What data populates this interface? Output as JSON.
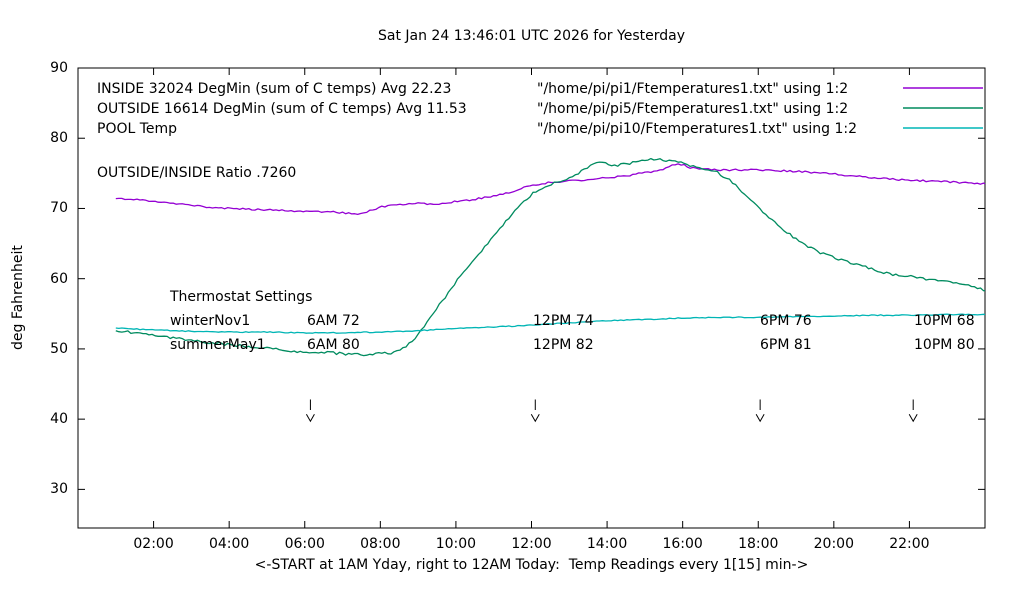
{
  "chart_data": {
    "type": "line",
    "title": "Sat Jan 24 13:46:01 UTC 2026 for Yesterday",
    "xlabel": "<-START at 1AM Yday, right to 12AM Today:  Temp Readings every 1[15] min->",
    "ylabel": "deg Fahrenheit",
    "xlim": [
      0,
      24
    ],
    "ylim": [
      24.5,
      90
    ],
    "grid": false,
    "legend_position": "top-left-inside",
    "xtick_hours": [
      2,
      4,
      6,
      8,
      10,
      12,
      14,
      16,
      18,
      20,
      22
    ],
    "xtick_labels": [
      "02:00",
      "04:00",
      "06:00",
      "08:00",
      "10:00",
      "12:00",
      "14:00",
      "16:00",
      "18:00",
      "20:00",
      "22:00"
    ],
    "ytick_values": [
      30,
      40,
      50,
      60,
      70,
      80,
      90
    ],
    "legend": [
      {
        "id": "inside",
        "label": "INSIDE 32024 DegMin (sum of C temps) Avg 22.23",
        "file": "\"/home/pi/pi1/Ftemperatures1.txt\" using 1:2",
        "color": "#9400d3"
      },
      {
        "id": "outside",
        "label": "OUTSIDE 16614 DegMin (sum of C temps) Avg 11.53",
        "file": "\"/home/pi/pi5/Ftemperatures1.txt\" using 1:2",
        "color": "#008b5f"
      },
      {
        "id": "pool",
        "label": "POOL Temp",
        "file": "\"/home/pi/pi10/Ftemperatures1.txt\" using 1:2",
        "color": "#00b5b5"
      }
    ],
    "annotations": {
      "ratio": "OUTSIDE/INSIDE Ratio .7260",
      "thermostat_title": "Thermostat Settings",
      "thermostat_rows": [
        {
          "name": "winterNov1",
          "t6am": "6AM 72",
          "t12pm": "12PM 74",
          "t6pm": "6PM 76",
          "t10pm": "10PM 68"
        },
        {
          "name": "summerMay1",
          "t6am": "6AM 80",
          "t12pm": "12PM 82",
          "t6pm": "6PM 81",
          "t10pm": "10PM 80"
        }
      ]
    },
    "arrows_x_hours": [
      6.15,
      12.1,
      18.05,
      22.1
    ],
    "series": [
      {
        "id": "inside",
        "name": "INSIDE",
        "color": "#9400d3",
        "noise": 0.12,
        "seed": 1,
        "points": [
          [
            1,
            71.5
          ],
          [
            2,
            71.0
          ],
          [
            3,
            70.4
          ],
          [
            4,
            70.0
          ],
          [
            5,
            69.8
          ],
          [
            6,
            69.6
          ],
          [
            6.8,
            69.5
          ],
          [
            7.3,
            69.2
          ],
          [
            7.6,
            69.4
          ],
          [
            8,
            70.2
          ],
          [
            8.3,
            70.5
          ],
          [
            9,
            70.7
          ],
          [
            9.5,
            70.6
          ],
          [
            10,
            71.0
          ],
          [
            10.5,
            71.3
          ],
          [
            11,
            71.8
          ],
          [
            11.5,
            72.4
          ],
          [
            12,
            73.3
          ],
          [
            12.5,
            73.7
          ],
          [
            13,
            73.9
          ],
          [
            13.5,
            74.1
          ],
          [
            14,
            74.4
          ],
          [
            14.5,
            74.6
          ],
          [
            15,
            75.1
          ],
          [
            15.4,
            75.4
          ],
          [
            15.7,
            76.2
          ],
          [
            16,
            76.3
          ],
          [
            16.2,
            75.8
          ],
          [
            16.5,
            75.6
          ],
          [
            17,
            75.5
          ],
          [
            18,
            75.5
          ],
          [
            19,
            75.3
          ],
          [
            20,
            74.9
          ],
          [
            21,
            74.4
          ],
          [
            22,
            74.0
          ],
          [
            23,
            73.8
          ],
          [
            24,
            73.5
          ]
        ]
      },
      {
        "id": "outside",
        "name": "OUTSIDE",
        "color": "#008b5f",
        "noise": 0.18,
        "seed": 2,
        "points": [
          [
            1,
            52.6
          ],
          [
            1.5,
            52.3
          ],
          [
            2,
            51.9
          ],
          [
            2.5,
            51.6
          ],
          [
            3,
            51.2
          ],
          [
            3.5,
            50.9
          ],
          [
            4,
            50.6
          ],
          [
            4.5,
            50.3
          ],
          [
            5,
            50.1
          ],
          [
            5.5,
            49.8
          ],
          [
            6,
            49.5
          ],
          [
            6.3,
            49.3
          ],
          [
            6.6,
            49.5
          ],
          [
            7,
            49.3
          ],
          [
            7.5,
            49.2
          ],
          [
            8,
            49.3
          ],
          [
            8.4,
            49.5
          ],
          [
            8.7,
            50.5
          ],
          [
            9,
            52.0
          ],
          [
            9.3,
            54.5
          ],
          [
            9.6,
            56.5
          ],
          [
            10,
            59.5
          ],
          [
            10.3,
            61.5
          ],
          [
            10.6,
            63.5
          ],
          [
            11,
            66.0
          ],
          [
            11.3,
            68.0
          ],
          [
            11.6,
            70.0
          ],
          [
            12,
            72.0
          ],
          [
            12.3,
            73.0
          ],
          [
            12.6,
            73.6
          ],
          [
            13,
            74.3
          ],
          [
            13.3,
            75.2
          ],
          [
            13.6,
            76.2
          ],
          [
            13.9,
            76.6
          ],
          [
            14.2,
            76.1
          ],
          [
            14.5,
            76.3
          ],
          [
            15,
            77.0
          ],
          [
            15.3,
            77.1
          ],
          [
            15.6,
            76.8
          ],
          [
            16,
            76.5
          ],
          [
            16.3,
            75.9
          ],
          [
            16.6,
            75.6
          ],
          [
            16.9,
            75.2
          ],
          [
            17.2,
            74.2
          ],
          [
            17.5,
            72.8
          ],
          [
            17.8,
            71.2
          ],
          [
            18,
            70.2
          ],
          [
            18.3,
            68.6
          ],
          [
            18.6,
            67.3
          ],
          [
            19,
            65.6
          ],
          [
            19.3,
            64.6
          ],
          [
            19.6,
            63.8
          ],
          [
            20,
            63.0
          ],
          [
            20.5,
            62.2
          ],
          [
            21,
            61.4
          ],
          [
            21.5,
            60.6
          ],
          [
            22,
            60.4
          ],
          [
            22.3,
            60.0
          ],
          [
            23,
            59.6
          ],
          [
            23.5,
            59.1
          ],
          [
            24,
            58.3
          ]
        ]
      },
      {
        "id": "pool",
        "name": "POOL",
        "color": "#00b5b5",
        "noise": 0.07,
        "seed": 3,
        "points": [
          [
            1,
            53.0
          ],
          [
            2,
            52.7
          ],
          [
            3,
            52.5
          ],
          [
            4,
            52.4
          ],
          [
            5,
            52.4
          ],
          [
            6,
            52.3
          ],
          [
            7,
            52.3
          ],
          [
            8,
            52.4
          ],
          [
            9,
            52.6
          ],
          [
            10,
            52.9
          ],
          [
            11,
            53.1
          ],
          [
            12,
            53.4
          ],
          [
            13,
            53.7
          ],
          [
            14,
            54.0
          ],
          [
            15,
            54.2
          ],
          [
            16,
            54.4
          ],
          [
            17,
            54.5
          ],
          [
            18,
            54.5
          ],
          [
            19,
            54.6
          ],
          [
            20,
            54.7
          ],
          [
            21,
            54.8
          ],
          [
            22,
            54.8
          ],
          [
            23,
            54.9
          ],
          [
            24,
            54.9
          ]
        ]
      }
    ]
  }
}
